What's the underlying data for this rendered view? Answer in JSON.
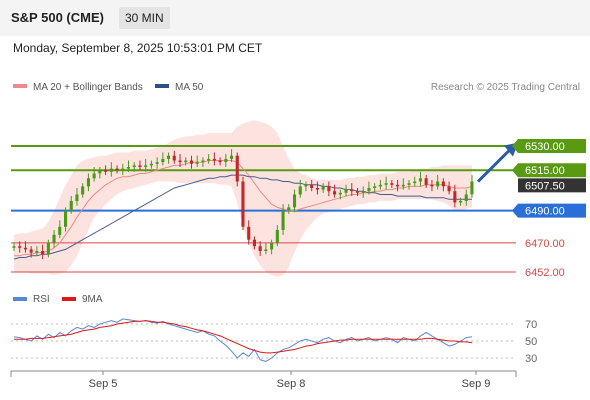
{
  "header": {
    "title": "S&P 500 (CME)",
    "timeframe": "30 MIN",
    "datetime": "Monday, September 8, 2025 10:53:01 PM CET"
  },
  "legend": {
    "items": [
      {
        "label": "MA 20 + Bollinger Bands",
        "color": "#f08a8a"
      },
      {
        "label": "MA 50",
        "color": "#2b4f8c"
      }
    ],
    "credit": "Research © 2025 Trading Central"
  },
  "colors": {
    "resistance": "#5a9a12",
    "pivot": "#2a6fd8",
    "support": "#d84848",
    "bull_candle": "#4a9a1a",
    "bear_candle": "#c0282a",
    "bollinger_fill": "#fde3e0",
    "ma20": "#ec8a80",
    "ma50": "#4a5a8c",
    "rsi": "#5a86d8",
    "rsi_ma": "#e01818",
    "last_price": "#333333",
    "arrow": "#2b5ca8"
  },
  "chart_data": [
    {
      "type": "line",
      "name": "price",
      "x_ticks": [
        "Sep 5",
        "Sep 8",
        "Sep 9"
      ],
      "ylim": [
        6440,
        6560
      ],
      "levels": [
        {
          "value": 6530.0,
          "label": "6530.00",
          "kind": "resistance"
        },
        {
          "value": 6515.0,
          "label": "6515.00",
          "kind": "resistance"
        },
        {
          "value": 6490.0,
          "label": "6490.00",
          "kind": "pivot"
        },
        {
          "value": 6470.0,
          "label": "6470.00",
          "kind": "support"
        },
        {
          "value": 6452.0,
          "label": "6452.00",
          "kind": "support"
        }
      ],
      "last_price": {
        "value": 6507.5,
        "label": "6507.50"
      },
      "forecast_arrow": {
        "from": 6508,
        "to": 6529
      },
      "close": [
        6468,
        6467,
        6466,
        6464,
        6465,
        6463,
        6470,
        6475,
        6480,
        6490,
        6496,
        6500,
        6505,
        6510,
        6513,
        6515,
        6514,
        6516,
        6515,
        6516,
        6517,
        6518,
        6517,
        6518,
        6519,
        6520,
        6522,
        6524,
        6521,
        6520,
        6521,
        6519,
        6520,
        6521,
        6522,
        6521,
        6520,
        6522,
        6524,
        6508,
        6480,
        6472,
        6468,
        6465,
        6466,
        6470,
        6478,
        6490,
        6492,
        6500,
        6505,
        6506,
        6504,
        6503,
        6505,
        6502,
        6500,
        6501,
        6503,
        6502,
        6501,
        6502,
        6504,
        6505,
        6506,
        6507,
        6506,
        6505,
        6506,
        6507,
        6508,
        6510,
        6506,
        6505,
        6508,
        6505,
        6502,
        6495,
        6496,
        6500,
        6508
      ],
      "ma20": [
        6462,
        6462,
        6463,
        6463,
        6464,
        6464,
        6465,
        6467,
        6470,
        6475,
        6480,
        6486,
        6491,
        6496,
        6500,
        6503,
        6506,
        6508,
        6510,
        6511,
        6511,
        6512,
        6513,
        6513,
        6514,
        6515,
        6516,
        6517,
        6518,
        6518,
        6519,
        6520,
        6520,
        6520,
        6521,
        6521,
        6521,
        6521,
        6521,
        6520,
        6516,
        6512,
        6507,
        6502,
        6498,
        6494,
        6492,
        6491,
        6490,
        6490,
        6491,
        6492,
        6493,
        6494,
        6495,
        6496,
        6497,
        6498,
        6499,
        6500,
        6500,
        6501,
        6501,
        6502,
        6502,
        6503,
        6503,
        6504,
        6504,
        6505,
        6505,
        6505,
        6506,
        6506,
        6506,
        6506,
        6505,
        6504,
        6504,
        6504,
        6505
      ],
      "bb_upper": [
        6475,
        6476,
        6476,
        6477,
        6478,
        6479,
        6483,
        6490,
        6498,
        6506,
        6512,
        6518,
        6521,
        6522,
        6523,
        6524,
        6524,
        6525,
        6526,
        6526,
        6526,
        6527,
        6527,
        6527,
        6528,
        6529,
        6530,
        6532,
        6534,
        6535,
        6536,
        6536,
        6537,
        6537,
        6538,
        6538,
        6538,
        6538,
        6538,
        6542,
        6544,
        6545,
        6546,
        6545,
        6544,
        6542,
        6538,
        6530,
        6522,
        6516,
        6513,
        6512,
        6510,
        6509,
        6509,
        6509,
        6509,
        6509,
        6510,
        6510,
        6511,
        6511,
        6512,
        6512,
        6513,
        6513,
        6513,
        6514,
        6514,
        6514,
        6515,
        6516,
        6516,
        6517,
        6517,
        6518,
        6518,
        6518,
        6518,
        6518,
        6518
      ],
      "bb_lower": [
        6452,
        6452,
        6452,
        6451,
        6451,
        6451,
        6451,
        6450,
        6451,
        6452,
        6456,
        6462,
        6470,
        6478,
        6486,
        6490,
        6494,
        6497,
        6500,
        6502,
        6503,
        6504,
        6505,
        6506,
        6507,
        6508,
        6508,
        6508,
        6508,
        6507,
        6507,
        6507,
        6507,
        6507,
        6507,
        6507,
        6506,
        6506,
        6505,
        6495,
        6480,
        6470,
        6462,
        6456,
        6452,
        6450,
        6449,
        6450,
        6455,
        6464,
        6472,
        6478,
        6482,
        6486,
        6488,
        6489,
        6490,
        6491,
        6492,
        6493,
        6494,
        6494,
        6495,
        6495,
        6496,
        6496,
        6496,
        6497,
        6497,
        6497,
        6497,
        6497,
        6497,
        6497,
        6496,
        6495,
        6493,
        6490,
        6490,
        6491,
        6492
      ],
      "ma50": [
        6460,
        6461,
        6461,
        6462,
        6462,
        6463,
        6463,
        6464,
        6465,
        6466,
        6468,
        6470,
        6472,
        6474,
        6476,
        6478,
        6480,
        6482,
        6484,
        6486,
        6488,
        6490,
        6492,
        6494,
        6496,
        6498,
        6500,
        6502,
        6504,
        6505,
        6506,
        6507,
        6508,
        6509,
        6510,
        6510,
        6511,
        6511,
        6512,
        6512,
        6512,
        6511,
        6511,
        6510,
        6510,
        6509,
        6509,
        6508,
        6508,
        6507,
        6507,
        6506,
        6506,
        6506,
        6505,
        6505,
        6504,
        6504,
        6503,
        6503,
        6502,
        6502,
        6501,
        6501,
        6500,
        6500,
        6500,
        6499,
        6499,
        6499,
        6499,
        6499,
        6498,
        6498,
        6498,
        6498,
        6497,
        6497,
        6497,
        6497,
        6497
      ]
    },
    {
      "type": "line",
      "name": "RSI",
      "legend": [
        "RSI",
        "9MA"
      ],
      "y_ticks": [
        70,
        50,
        30
      ],
      "ylim": [
        20,
        80
      ],
      "rsi": [
        55,
        54,
        52,
        50,
        56,
        52,
        58,
        54,
        60,
        56,
        62,
        66,
        64,
        68,
        66,
        70,
        72,
        74,
        72,
        76,
        75,
        74,
        73,
        74,
        72,
        71,
        73,
        70,
        68,
        66,
        64,
        62,
        60,
        62,
        58,
        56,
        50,
        45,
        38,
        30,
        36,
        32,
        40,
        28,
        26,
        30,
        36,
        40,
        42,
        46,
        50,
        52,
        50,
        48,
        52,
        54,
        50,
        48,
        52,
        54,
        50,
        52,
        54,
        50,
        52,
        54,
        52,
        48,
        54,
        52,
        50,
        56,
        60,
        56,
        52,
        48,
        44,
        46,
        50,
        54,
        55
      ],
      "rsi_ma": [
        52,
        52,
        52,
        53,
        53,
        53,
        54,
        55,
        56,
        57,
        58,
        60,
        62,
        63,
        64,
        66,
        67,
        68,
        70,
        71,
        72,
        73,
        73,
        74,
        73,
        72,
        72,
        71,
        70,
        68,
        67,
        65,
        63,
        62,
        60,
        58,
        56,
        53,
        50,
        47,
        44,
        41,
        39,
        37,
        36,
        36,
        37,
        38,
        39,
        40,
        42,
        44,
        45,
        47,
        48,
        49,
        50,
        51,
        51,
        52,
        52,
        52,
        52,
        52,
        52,
        52,
        52,
        52,
        52,
        52,
        52,
        52,
        53,
        53,
        52,
        51,
        50,
        50,
        49,
        49,
        48
      ]
    }
  ]
}
